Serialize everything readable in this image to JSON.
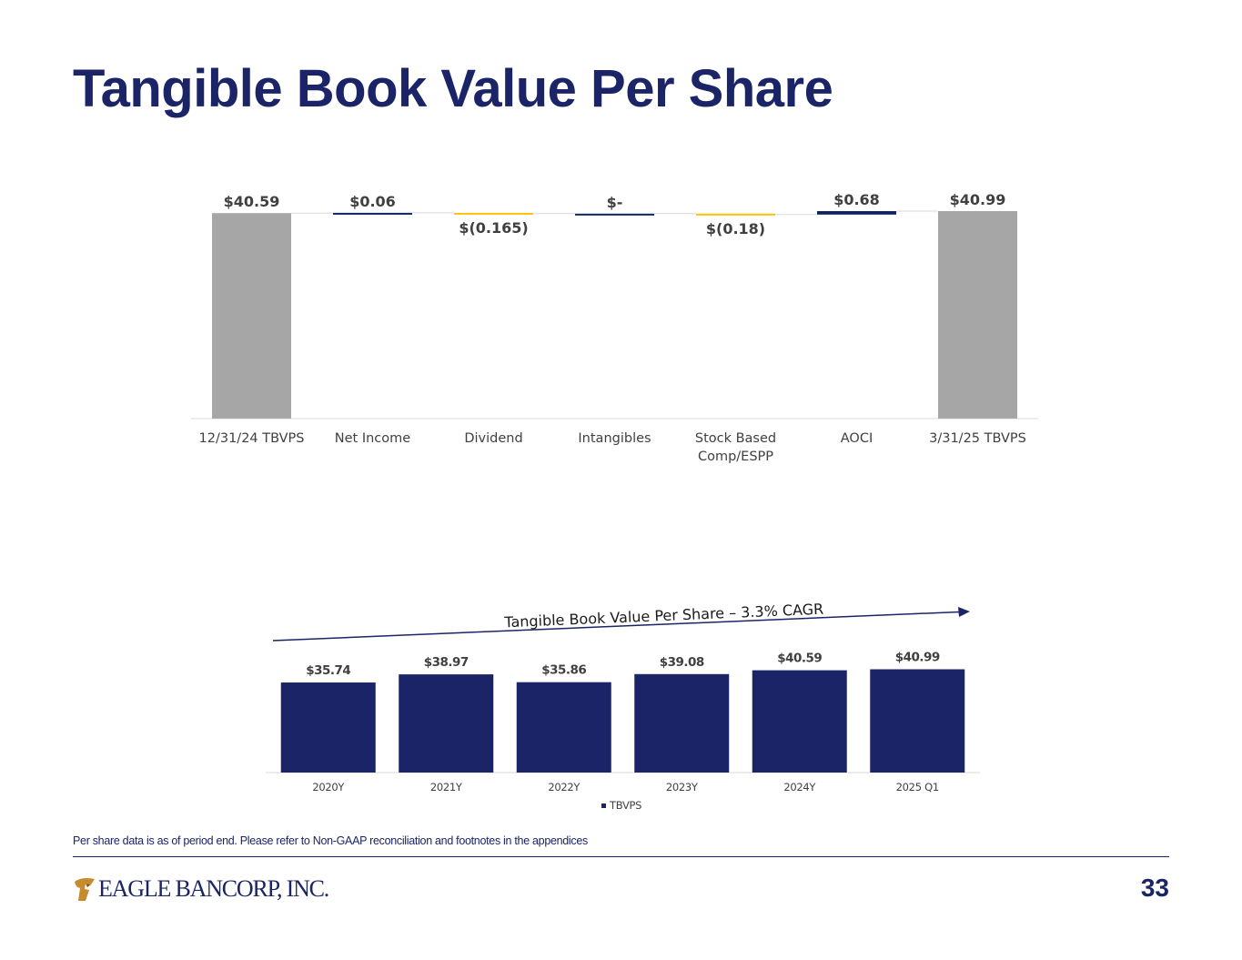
{
  "slide": {
    "title": "Tangible Book Value Per Share",
    "footnote": "Per share data is as of period end. Please refer to Non-GAAP reconciliation and footnotes in the appendices",
    "page_number": "33",
    "logo_text": "EAGLE BANCORP, INC.",
    "logo_icon": "eagle-head-icon"
  },
  "colors": {
    "total": "#a6a6a6",
    "increase": "#0d2360",
    "decrease": "#ffc000",
    "bar": "#1b2466",
    "text": "#404040",
    "title": "#1b2466"
  },
  "chart_data": [
    {
      "type": "waterfall",
      "categories": [
        "12/31/24 TBVPS",
        "Net Income",
        "Dividend",
        "Intangibles",
        "Stock Based Comp/ESPP",
        "AOCI",
        "3/31/25 TBVPS"
      ],
      "values": [
        40.59,
        0.06,
        -0.165,
        0,
        -0.18,
        0.68,
        40.99
      ],
      "kinds": [
        "total",
        "increase",
        "decrease",
        "increase",
        "decrease",
        "increase",
        "total"
      ],
      "labels": [
        "$40.59",
        "$0.06",
        "$(0.165)",
        "$-",
        "$(0.18)",
        "$0.68",
        "$40.99"
      ],
      "legend": "none",
      "grid": false
    },
    {
      "type": "bar",
      "categories": [
        "2020Y",
        "2021Y",
        "2022Y",
        "2023Y",
        "2024Y",
        "2025 Q1"
      ],
      "series": [
        {
          "name": "TBVPS",
          "values": [
            35.74,
            38.97,
            35.86,
            39.08,
            40.59,
            40.99
          ]
        }
      ],
      "labels": [
        "$35.74",
        "$38.97",
        "$35.86",
        "$39.08",
        "$40.59",
        "$40.99"
      ],
      "annotation": "Tangible Book Value Per Share – 3.3% CAGR",
      "legend": "bottom",
      "grid": false
    }
  ]
}
